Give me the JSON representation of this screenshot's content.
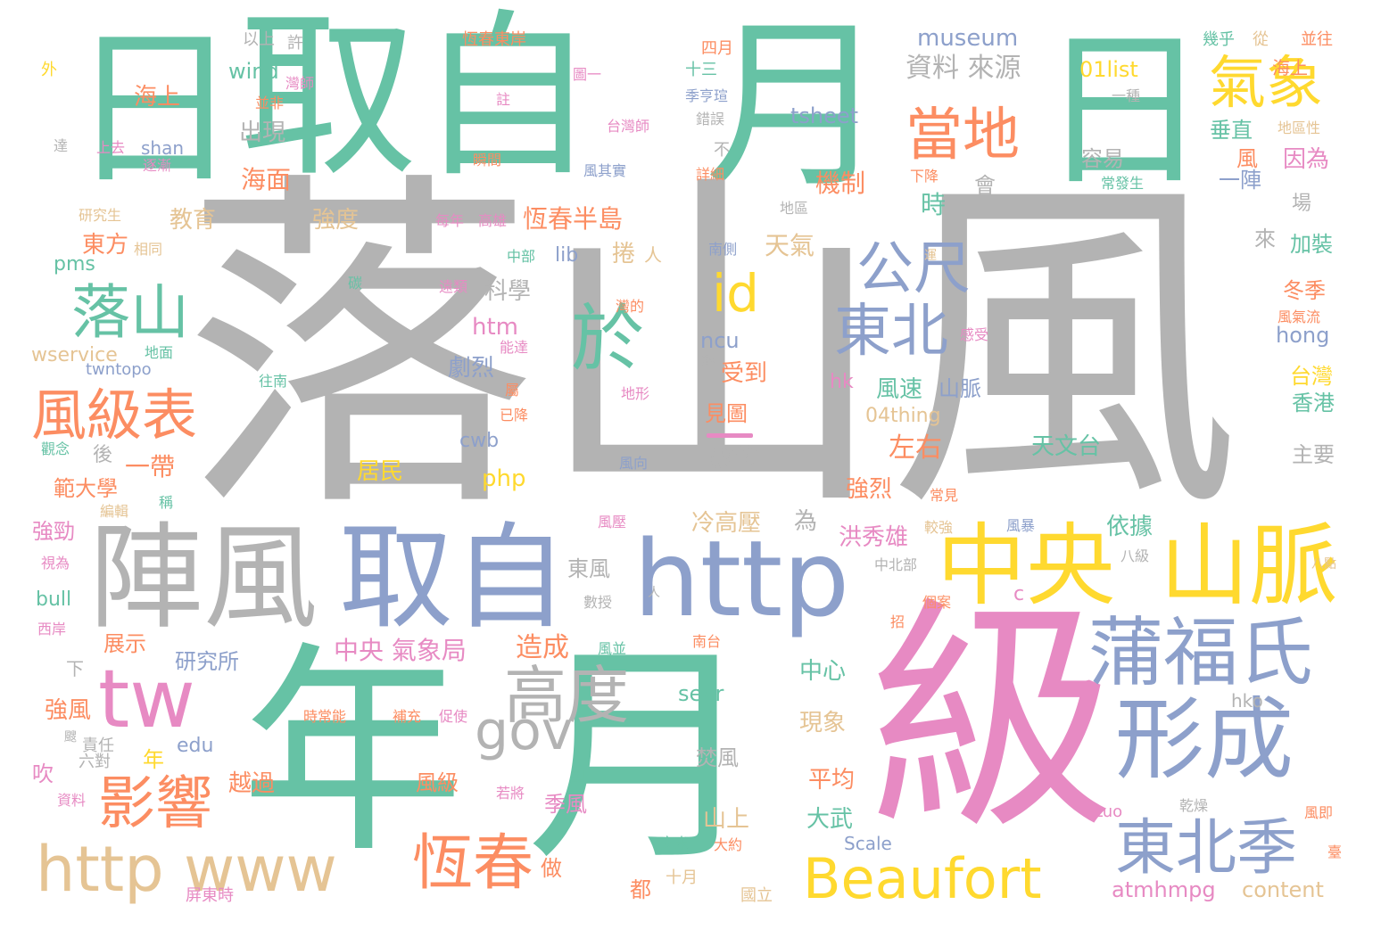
{
  "colors": {
    "teal": "#66c2a5",
    "orange": "#fc8d62",
    "blue": "#8da0cb",
    "pink": "#e78ac3",
    "green": "#a6d854",
    "yellow": "#ffd92f",
    "tan": "#e5c494",
    "gray": "#b3b3b3"
  },
  "words": [
    "日",
    "取自",
    "月",
    "日",
    "落山風",
    "級",
    "年",
    "月",
    "陣風",
    "取自",
    "http",
    "中央",
    "山脈",
    "tw",
    "gov",
    "高度",
    "蒲福氏",
    "形成",
    "東北季",
    "Beaufort",
    "http www",
    "恆春",
    "影響",
    "風級表",
    "落山",
    "於",
    "id",
    "公尺",
    "東北",
    "當地",
    "氣象",
    "資料 來源",
    "museum",
    "tsheet",
    "wind",
    "01list",
    "海上",
    "出現",
    "海面",
    "教育",
    "機制",
    "時",
    "會",
    "強度",
    "恆春半島",
    "東方",
    "天氣",
    "捲",
    "人",
    "pms",
    "lib",
    "科學",
    "htm",
    "ncu",
    "受到",
    "劇烈",
    "風速",
    "山脈",
    "hk",
    "04thing",
    "wservice",
    "twntopo",
    "一帶",
    "後",
    "見圖",
    "數位",
    "左右",
    "強烈",
    "洪秀雄",
    "冷高壓",
    "為",
    "依據",
    "天文台",
    "主要",
    "香港",
    "台灣",
    "hong",
    "冬季",
    "加裝",
    "因為",
    "風",
    "垂直",
    "一陣",
    "容易",
    "來",
    "場",
    "範大學",
    "居民",
    "php",
    "cwb",
    "強勁",
    "bull",
    "展示",
    "研究所",
    "中央 氣象局",
    "造成",
    "東風",
    "c",
    "中心",
    "sevr",
    "現象",
    "強風",
    "edu",
    "年",
    "吹",
    "越過",
    "風級",
    "季風",
    "平均",
    "大武",
    "山上",
    "焚風",
    "Scale",
    "atmhmpg",
    "content",
    "做",
    "都",
    "十月",
    "屏東時",
    "國立",
    "Luo",
    "資料",
    "下",
    "責任",
    "六對",
    "以上",
    "許",
    "恆春東岸",
    "四月",
    "十三",
    "幾乎",
    "從",
    "並往",
    "外",
    "灣師",
    "並非",
    "海上",
    "上去",
    "shan",
    "逐漸",
    "註",
    "瞬間",
    "季亨瑄",
    "錯誤",
    "不",
    "詳細",
    "風其實",
    "圖一",
    "台灣師",
    "一種",
    "地區性",
    "常發生",
    "下降",
    "研究生",
    "每年",
    "高雄",
    "相同",
    "地區",
    "中部",
    "南側",
    "灣的",
    "地面",
    "往南",
    "感受",
    "約",
    "地形",
    "能達",
    "已降",
    "風向",
    "觀念",
    "編輯",
    "稱",
    "風壓",
    "常見",
    "較強",
    "風暴",
    "視為",
    "西岸",
    "數授",
    "中北部",
    "個案",
    "八級",
    "時常能",
    "補充",
    "促使",
    "若將",
    "型",
    "風並",
    "南台",
    "乾燥",
    "風即",
    "臺",
    "文末",
    "大約",
    "颼",
    "達",
    "遠類",
    "碳",
    "屬",
    "運",
    "招",
    "hko",
    "風氣流",
    "人",
    "八點"
  ]
}
